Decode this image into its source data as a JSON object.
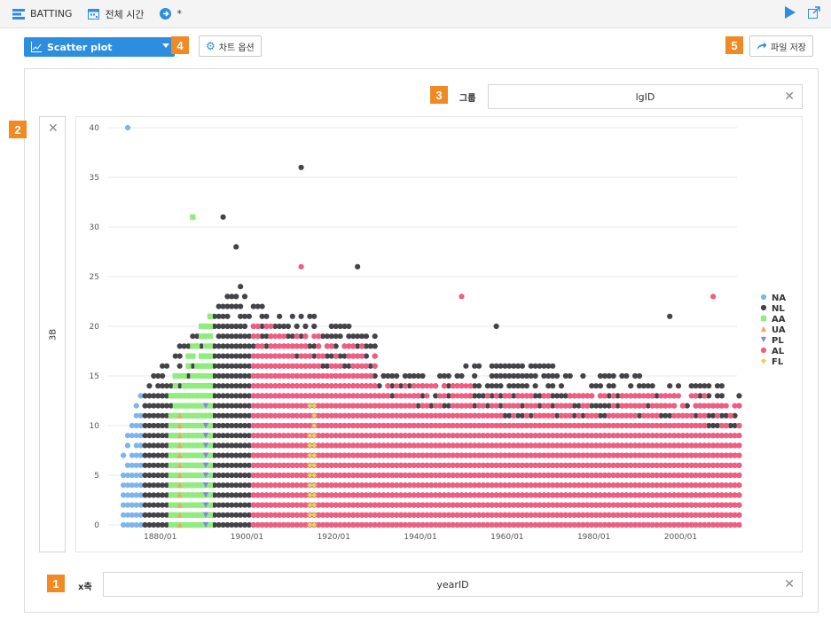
{
  "topbar": {
    "dataset_label": "BATTING",
    "time_label": "전체 시간",
    "arrow_label": "*"
  },
  "toolbar": {
    "chart_type": "Scatter plot",
    "chart_options_label": "차트 옵션",
    "save_file_label": "파일 저장"
  },
  "badges": {
    "b1": "1",
    "b2": "2",
    "b3": "3",
    "b4": "4",
    "b5": "5"
  },
  "group": {
    "label": "그룹",
    "value": "lgID"
  },
  "x_axis": {
    "label": "x축",
    "value": "yearID"
  },
  "y_axis": {
    "value": "3B"
  },
  "colors": {
    "accent": "#2d8ee0",
    "badge": "#f08a24"
  },
  "chart_data": {
    "type": "scatter",
    "xlabel": "",
    "ylabel": "3B",
    "x_ticks": [
      "1880/01",
      "1900/01",
      "1920/01",
      "1940/01",
      "1960/01",
      "1980/01",
      "2000/01"
    ],
    "xlim": [
      1868,
      2013
    ],
    "ylim": [
      0,
      40
    ],
    "y_ticks": [
      0,
      5,
      10,
      15,
      20,
      25,
      30,
      35,
      40
    ],
    "grid": true,
    "legend_position": "right",
    "series": [
      {
        "name": "NA",
        "color": "#7cb5ec",
        "shape": "circle",
        "years": [
          1871,
          1875
        ],
        "max": 15
      },
      {
        "name": "NL",
        "color": "#434348",
        "shape": "circle",
        "years": [
          1876,
          2013
        ],
        "max": 36
      },
      {
        "name": "AA",
        "color": "#90ed7d",
        "shape": "square",
        "years": [
          1882,
          1891
        ],
        "max": 31
      },
      {
        "name": "UA",
        "color": "#f7a35c",
        "shape": "triangle",
        "years": [
          1884,
          1884
        ],
        "max": 12
      },
      {
        "name": "PL",
        "color": "#8085e9",
        "shape": "triangle-down",
        "years": [
          1890,
          1890
        ],
        "max": 22
      },
      {
        "name": "AL",
        "color": "#f15c80",
        "shape": "circle",
        "years": [
          1901,
          2013
        ],
        "max": 26
      },
      {
        "name": "FL",
        "color": "#e4d354",
        "shape": "diamond",
        "years": [
          1914,
          1915
        ],
        "max": 17
      }
    ]
  }
}
